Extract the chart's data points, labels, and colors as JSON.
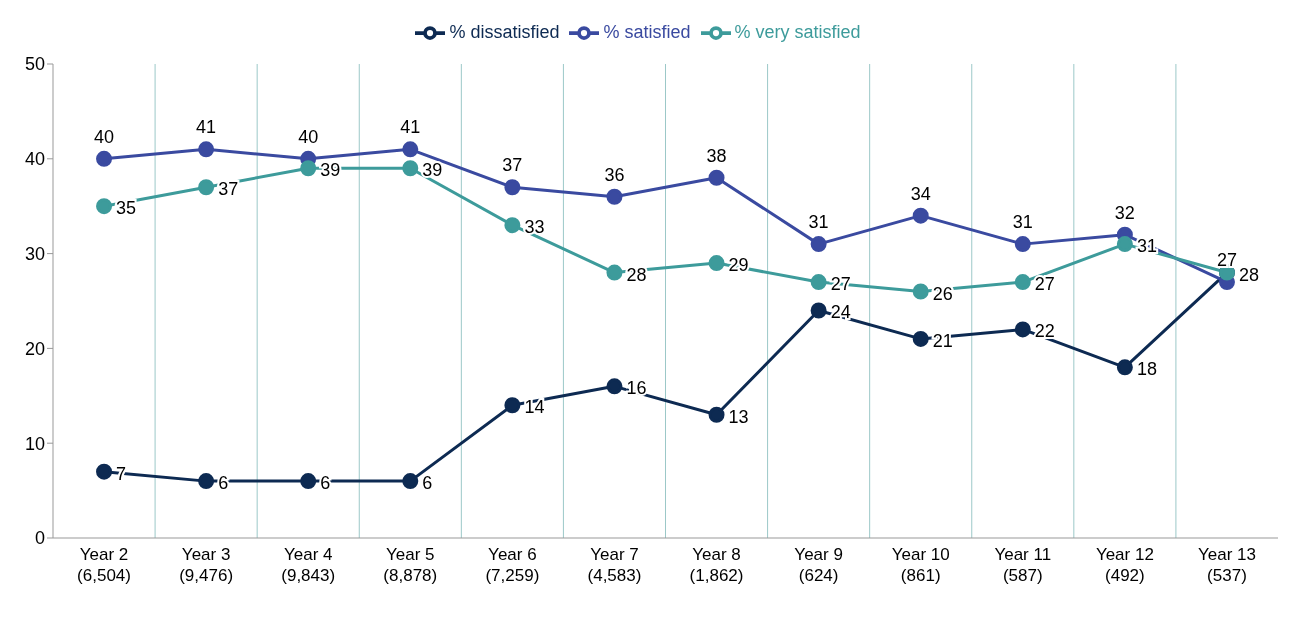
{
  "chart_data": {
    "type": "line",
    "categories": [
      "Year 2\n(6,504)",
      "Year 3\n(9,476)",
      "Year 4\n(9,843)",
      "Year 5\n(8,878)",
      "Year 6\n(7,259)",
      "Year 7\n(4,583)",
      "Year 8\n(1,862)",
      "Year 9\n(624)",
      "Year 10\n(861)",
      "Year 11\n(587)",
      "Year 12\n(492)",
      "Year 13\n(537)"
    ],
    "series": [
      {
        "name": "% dissatisfied",
        "color": "#0d2a52",
        "values": [
          7,
          6,
          6,
          6,
          14,
          16,
          13,
          24,
          21,
          22,
          18,
          28
        ],
        "value_labels": [
          "7",
          "6",
          "6",
          "6",
          "14",
          "16",
          "13",
          "24",
          "21",
          "22",
          "18",
          null
        ]
      },
      {
        "name": "% satisfied",
        "color": "#3a4aa0",
        "values": [
          40,
          41,
          40,
          41,
          37,
          36,
          38,
          31,
          34,
          31,
          32,
          27
        ],
        "value_labels": [
          "40",
          "41",
          "40",
          "41",
          "37",
          "36",
          "38",
          "31",
          "34",
          "31",
          "32",
          "27"
        ]
      },
      {
        "name": "% very satisfied",
        "color": "#3d9b9b",
        "values": [
          35,
          37,
          39,
          39,
          33,
          28,
          29,
          27,
          26,
          27,
          31,
          28
        ],
        "value_labels": [
          "35",
          "37",
          "39",
          "39",
          "33",
          "28",
          "29",
          "27",
          "26",
          "27",
          "31",
          "28"
        ]
      }
    ],
    "ylim": [
      0,
      50
    ],
    "yticks": [
      0,
      10,
      20,
      30,
      40,
      50
    ],
    "grid": "x",
    "legend": "top",
    "marker": "circle",
    "line_style": "solid"
  }
}
